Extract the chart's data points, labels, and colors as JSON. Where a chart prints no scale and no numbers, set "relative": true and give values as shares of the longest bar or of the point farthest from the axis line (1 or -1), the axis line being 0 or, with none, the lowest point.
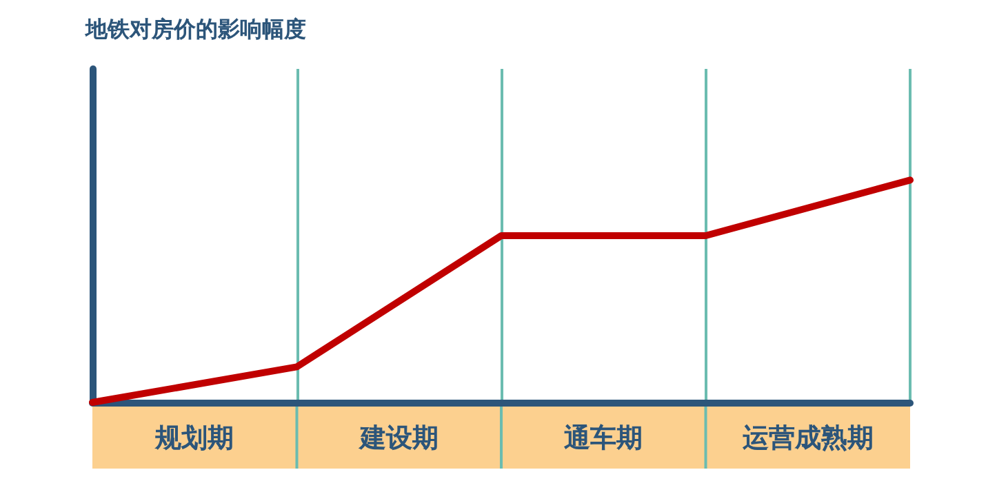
{
  "chart_data": {
    "type": "line",
    "title": "地铁对房价的影响幅度",
    "relative": true,
    "categories": [
      null,
      null,
      null,
      null,
      null
    ],
    "series": [
      {
        "color": "#c00000",
        "values": [
          0,
          0.16,
          0.75,
          0.75,
          1
        ]
      }
    ],
    "annotations": [
      "规划期",
      "建设期",
      "通车期",
      "运营成熟期"
    ],
    "line_style": "solid",
    "grid": "x"
  }
}
